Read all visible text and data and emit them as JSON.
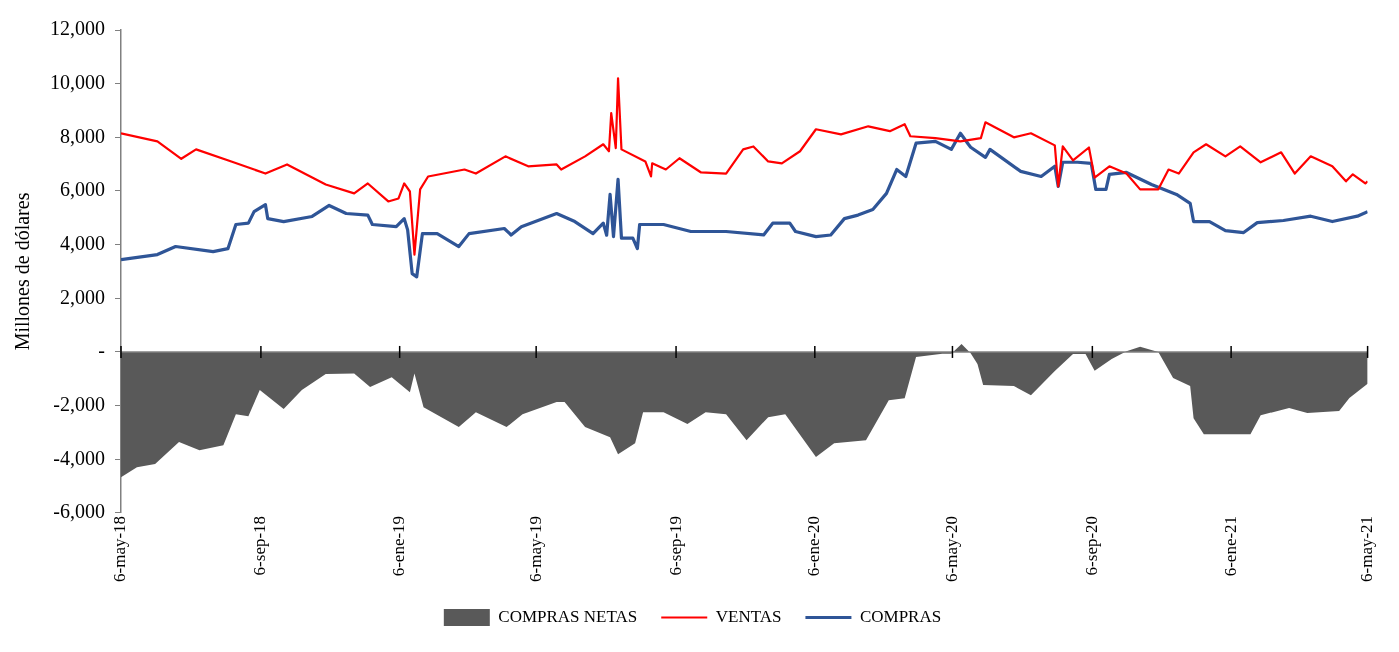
{
  "chart_data": {
    "type": "line",
    "ylabel": "Millones de dólares",
    "ylim": [
      -6000,
      12000
    ],
    "yticks": [
      {
        "value": -6000,
        "label": "-6,000"
      },
      {
        "value": -4000,
        "label": "-4,000"
      },
      {
        "value": -2000,
        "label": "-2,000"
      },
      {
        "value": 0,
        "label": "-"
      },
      {
        "value": 2000,
        "label": "2,000"
      },
      {
        "value": 4000,
        "label": "4,000"
      },
      {
        "value": 6000,
        "label": "6,000"
      },
      {
        "value": 8000,
        "label": "8,000"
      },
      {
        "value": 10000,
        "label": "10,000"
      },
      {
        "value": 12000,
        "label": "12,000"
      }
    ],
    "xlim": [
      "2018-05-06",
      "2021-05-06"
    ],
    "xticks": [
      {
        "value": "2018-05-06",
        "label": "6-may-18"
      },
      {
        "value": "2018-09-06",
        "label": "6-sep-18"
      },
      {
        "value": "2019-01-06",
        "label": "6-ene-19"
      },
      {
        "value": "2019-05-06",
        "label": "6-may-19"
      },
      {
        "value": "2019-09-06",
        "label": "6-sep-19"
      },
      {
        "value": "2020-01-06",
        "label": "6-ene-20"
      },
      {
        "value": "2020-05-06",
        "label": "6-may-20"
      },
      {
        "value": "2020-09-06",
        "label": "6-sep-20"
      },
      {
        "value": "2021-01-06",
        "label": "6-ene-21"
      },
      {
        "value": "2021-05-06",
        "label": "6-may-21"
      }
    ],
    "legend": "bottom",
    "series": [
      {
        "name": "COMPRAS NETAS",
        "type": "area",
        "color": "#595959",
        "x": [
          "2018-05-06",
          "2018-05-20",
          "2018-06-05",
          "2018-06-26",
          "2018-07-14",
          "2018-08-04",
          "2018-08-15",
          "2018-08-26",
          "2018-09-05",
          "2018-09-26",
          "2018-10-12",
          "2018-11-02",
          "2018-11-27",
          "2018-12-11",
          "2018-12-30",
          "2019-01-15",
          "2019-01-19",
          "2019-01-27",
          "2019-02-27",
          "2019-03-14",
          "2019-04-10",
          "2019-04-24",
          "2019-05-24",
          "2019-05-31",
          "2019-06-18",
          "2019-07-10",
          "2019-07-17",
          "2019-08-01",
          "2019-08-08",
          "2019-08-26",
          "2019-09-16",
          "2019-10-02",
          "2019-10-20",
          "2019-11-07",
          "2019-11-26",
          "2019-12-11",
          "2020-01-07",
          "2020-01-23",
          "2020-02-20",
          "2020-03-11",
          "2020-03-25",
          "2020-04-04",
          "2020-04-27",
          "2020-05-05",
          "2020-05-14",
          "2020-05-22",
          "2020-05-28",
          "2020-06-02",
          "2020-06-29",
          "2020-07-14",
          "2020-08-04",
          "2020-08-20",
          "2020-08-31",
          "2020-09-08",
          "2020-09-23",
          "2020-10-06",
          "2020-10-18",
          "2020-11-03",
          "2020-11-16",
          "2020-12-01",
          "2020-12-04",
          "2020-12-13",
          "2021-01-07",
          "2021-01-23",
          "2021-02-01",
          "2021-02-26",
          "2021-03-14",
          "2021-04-11",
          "2021-04-20",
          "2021-05-06"
        ],
        "values": [
          -4670,
          -4300,
          -4180,
          -3360,
          -3660,
          -3480,
          -2320,
          -2400,
          -1420,
          -2130,
          -1420,
          -820,
          -800,
          -1310,
          -940,
          -1500,
          -800,
          -2060,
          -2800,
          -2250,
          -2800,
          -2320,
          -1870,
          -1870,
          -2800,
          -3180,
          -3810,
          -3400,
          -2250,
          -2250,
          -2690,
          -2250,
          -2320,
          -3290,
          -2430,
          -2320,
          -3920,
          -3400,
          -3290,
          -1800,
          -1730,
          -190,
          -70,
          -70,
          300,
          -50,
          -450,
          -1230,
          -1270,
          -1610,
          -710,
          -80,
          -80,
          -700,
          -260,
          30,
          190,
          0,
          -970,
          -1270,
          -2470,
          -3070,
          -3070,
          -3070,
          -2360,
          -2090,
          -2280,
          -2200,
          -1720,
          -1190
        ]
      },
      {
        "name": "VENTAS",
        "type": "line",
        "color": "#ff0000",
        "x": [
          "2018-05-06",
          "2018-06-07",
          "2018-06-28",
          "2018-07-11",
          "2018-08-11",
          "2018-09-10",
          "2018-09-29",
          "2018-11-02",
          "2018-11-27",
          "2018-12-09",
          "2018-12-27",
          "2019-01-05",
          "2019-01-10",
          "2019-01-15",
          "2019-01-19",
          "2019-01-24",
          "2019-01-31",
          "2019-03-04",
          "2019-03-14",
          "2019-04-09",
          "2019-04-29",
          "2019-05-24",
          "2019-05-28",
          "2019-06-18",
          "2019-07-04",
          "2019-07-09",
          "2019-07-11",
          "2019-07-15",
          "2019-07-17",
          "2019-07-20",
          "2019-08-10",
          "2019-08-15",
          "2019-08-16",
          "2019-08-28",
          "2019-09-09",
          "2019-09-28",
          "2019-10-20",
          "2019-11-04",
          "2019-11-13",
          "2019-11-26",
          "2019-12-08",
          "2019-12-24",
          "2020-01-07",
          "2020-01-29",
          "2020-02-22",
          "2020-03-12",
          "2020-03-25",
          "2020-03-30",
          "2020-04-21",
          "2020-05-13",
          "2020-05-31",
          "2020-06-04",
          "2020-06-29",
          "2020-07-14",
          "2020-08-04",
          "2020-08-07",
          "2020-08-11",
          "2020-08-20",
          "2020-09-03",
          "2020-09-08",
          "2020-09-21",
          "2020-10-06",
          "2020-10-18",
          "2020-11-03",
          "2020-11-12",
          "2020-11-21",
          "2020-12-04",
          "2020-12-15",
          "2021-01-01",
          "2021-01-14",
          "2021-02-01",
          "2021-02-19",
          "2021-03-03",
          "2021-03-17",
          "2021-04-05",
          "2021-04-17",
          "2021-04-23",
          "2021-05-04",
          "2021-05-06"
        ],
        "values": [
          8150,
          7850,
          7200,
          7550,
          7100,
          6650,
          6990,
          6240,
          5910,
          6280,
          5610,
          5720,
          6280,
          5980,
          3630,
          6060,
          6540,
          6800,
          6650,
          7290,
          6920,
          6990,
          6800,
          7290,
          7740,
          7480,
          8900,
          7600,
          10200,
          7550,
          7100,
          6540,
          7030,
          6800,
          7220,
          6690,
          6650,
          7550,
          7660,
          7100,
          7030,
          7480,
          8300,
          8110,
          8410,
          8230,
          8490,
          8040,
          7970,
          7850,
          7970,
          8560,
          8000,
          8150,
          7700,
          6170,
          7660,
          7140,
          7620,
          6500,
          6920,
          6650,
          6060,
          6060,
          6800,
          6650,
          7440,
          7740,
          7290,
          7660,
          7070,
          7440,
          6650,
          7290,
          6920,
          6360,
          6620,
          6280,
          6360
        ]
      },
      {
        "name": "COMPRAS",
        "type": "line",
        "color": "#2f5597",
        "x": [
          "2018-05-06",
          "2018-06-07",
          "2018-06-23",
          "2018-07-26",
          "2018-08-08",
          "2018-08-15",
          "2018-08-26",
          "2018-08-31",
          "2018-09-10",
          "2018-09-12",
          "2018-09-26",
          "2018-10-21",
          "2018-11-05",
          "2018-11-20",
          "2018-12-09",
          "2018-12-13",
          "2019-01-03",
          "2019-01-10",
          "2019-01-13",
          "2019-01-17",
          "2019-01-21",
          "2019-01-26",
          "2019-02-08",
          "2019-02-27",
          "2019-03-08",
          "2019-04-08",
          "2019-04-14",
          "2019-04-23",
          "2019-05-24",
          "2019-06-09",
          "2019-06-25",
          "2019-07-04",
          "2019-07-07",
          "2019-07-10",
          "2019-07-13",
          "2019-07-17",
          "2019-07-20",
          "2019-07-30",
          "2019-08-03",
          "2019-08-05",
          "2019-08-26",
          "2019-09-19",
          "2019-10-20",
          "2019-11-22",
          "2019-11-30",
          "2019-12-15",
          "2019-12-20",
          "2020-01-07",
          "2020-01-20",
          "2020-02-01",
          "2020-02-13",
          "2020-02-26",
          "2020-03-09",
          "2020-03-18",
          "2020-03-26",
          "2020-04-04",
          "2020-04-21",
          "2020-05-05",
          "2020-05-13",
          "2020-05-20",
          "2020-05-22",
          "2020-06-04",
          "2020-06-08",
          "2020-07-05",
          "2020-07-23",
          "2020-08-04",
          "2020-08-07",
          "2020-08-11",
          "2020-08-24",
          "2020-09-05",
          "2020-09-09",
          "2020-09-18",
          "2020-09-21",
          "2020-10-06",
          "2020-10-28",
          "2020-11-19",
          "2020-12-01",
          "2020-12-04",
          "2020-12-18",
          "2021-01-01",
          "2021-01-17",
          "2021-01-29",
          "2021-02-21",
          "2021-03-17",
          "2021-04-05",
          "2021-04-27",
          "2021-05-06"
        ],
        "values": [
          3440,
          3630,
          3930,
          3740,
          3850,
          4750,
          4800,
          5230,
          5490,
          4970,
          4860,
          5050,
          5460,
          5160,
          5100,
          4750,
          4670,
          4970,
          4550,
          2920,
          2800,
          4410,
          4410,
          3930,
          4410,
          4600,
          4360,
          4670,
          5160,
          4860,
          4410,
          4800,
          4350,
          5870,
          4300,
          6430,
          4240,
          4240,
          3850,
          4750,
          4750,
          4490,
          4490,
          4360,
          4800,
          4800,
          4490,
          4300,
          4360,
          4970,
          5100,
          5310,
          5910,
          6800,
          6540,
          7780,
          7850,
          7550,
          8150,
          7740,
          7630,
          7250,
          7550,
          6730,
          6540,
          6920,
          6170,
          7070,
          7070,
          7030,
          6060,
          6060,
          6620,
          6690,
          6240,
          5870,
          5540,
          4860,
          4860,
          4520,
          4450,
          4820,
          4900,
          5060,
          4860,
          5060,
          5230
        ]
      }
    ]
  }
}
